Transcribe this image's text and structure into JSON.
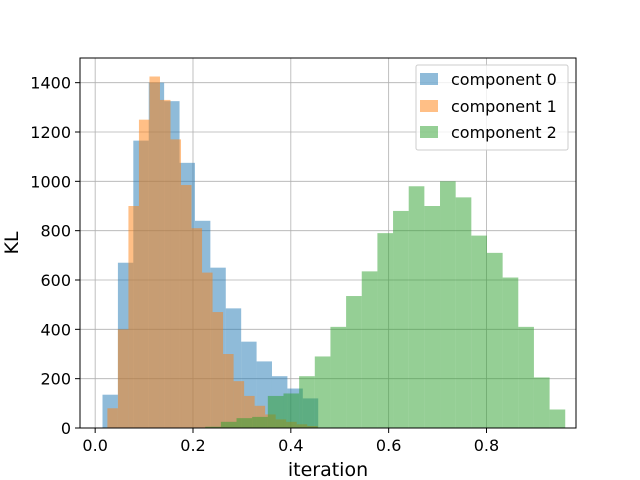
{
  "chart_data": {
    "type": "histogram",
    "xlabel": "iteration",
    "ylabel": "KL",
    "xlim": [
      -0.031,
      0.983
    ],
    "ylim": [
      0,
      1500
    ],
    "xticks": [
      0.0,
      0.2,
      0.4,
      0.6,
      0.8
    ],
    "xtick_labels": [
      "0.0",
      "0.2",
      "0.4",
      "0.6",
      "0.8"
    ],
    "yticks": [
      0,
      200,
      400,
      600,
      800,
      1000,
      1200,
      1400
    ],
    "ytick_labels": [
      "0",
      "200",
      "400",
      "600",
      "800",
      "1000",
      "1200",
      "1400"
    ],
    "grid": true,
    "legend_position": "top-right",
    "series": [
      {
        "name": "component 0",
        "color": "#1f77b4",
        "alpha": 0.5,
        "edges": [
          0.015,
          0.0465,
          0.078,
          0.1095,
          0.141,
          0.1725,
          0.204,
          0.2355,
          0.267,
          0.2985,
          0.33,
          0.3615,
          0.393,
          0.4245,
          0.456
        ],
        "counts": [
          135,
          670,
          1165,
          1400,
          1325,
          1075,
          840,
          650,
          485,
          350,
          270,
          210,
          160,
          120
        ]
      },
      {
        "name": "component 1",
        "color": "#ff7f0e",
        "alpha": 0.5,
        "edges": [
          0.025,
          0.0465,
          0.068,
          0.0895,
          0.111,
          0.1325,
          0.154,
          0.1755,
          0.197,
          0.2185,
          0.24,
          0.2615,
          0.283,
          0.3045,
          0.326,
          0.3475,
          0.369,
          0.3905,
          0.412,
          0.4335,
          0.455
        ],
        "counts": [
          80,
          400,
          900,
          1250,
          1425,
          1330,
          1170,
          985,
          810,
          630,
          470,
          300,
          190,
          130,
          90,
          55,
          35,
          25,
          15,
          8
        ]
      },
      {
        "name": "component 2",
        "color": "#2ca02c",
        "alpha": 0.5,
        "edges": [
          0.225,
          0.257,
          0.289,
          0.321,
          0.353,
          0.385,
          0.417,
          0.449,
          0.481,
          0.513,
          0.545,
          0.577,
          0.609,
          0.641,
          0.673,
          0.705,
          0.737,
          0.769,
          0.801,
          0.833,
          0.865,
          0.897,
          0.929,
          0.961
        ],
        "counts": [
          5,
          25,
          40,
          45,
          130,
          140,
          210,
          290,
          410,
          535,
          635,
          790,
          880,
          980,
          900,
          1000,
          935,
          780,
          710,
          610,
          410,
          205,
          75
        ]
      }
    ]
  }
}
